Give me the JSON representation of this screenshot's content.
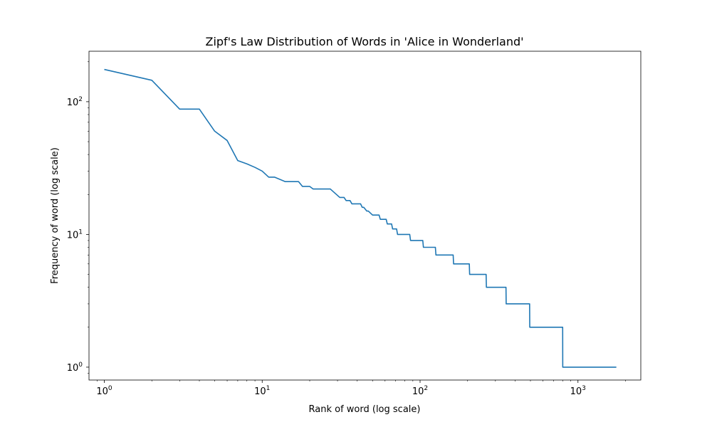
{
  "chart_data": {
    "type": "line",
    "title": "Zipf's Law Distribution of Words in 'Alice in Wonderland'",
    "xlabel": "Rank of word (log scale)",
    "ylabel": "Frequency of word (log scale)",
    "xscale": "log",
    "yscale": "log",
    "xlim": [
      0.8,
      2500
    ],
    "ylim": [
      0.8,
      240
    ],
    "grid": false,
    "line_color": "#1f77b4",
    "xticks": [
      {
        "value": 1,
        "base": "10",
        "exp": "0"
      },
      {
        "value": 10,
        "base": "10",
        "exp": "1"
      },
      {
        "value": 100,
        "base": "10",
        "exp": "2"
      },
      {
        "value": 1000,
        "base": "10",
        "exp": "3"
      }
    ],
    "yticks": [
      {
        "value": 1,
        "base": "10",
        "exp": "0"
      },
      {
        "value": 10,
        "base": "10",
        "exp": "1"
      },
      {
        "value": 100,
        "base": "10",
        "exp": "2"
      }
    ],
    "series": [
      {
        "x": [
          1,
          2,
          3,
          4,
          5,
          6,
          7,
          8,
          9,
          10,
          11,
          12,
          14,
          17,
          18,
          20,
          21,
          27,
          31,
          33,
          34,
          36,
          37,
          40,
          42,
          43,
          44,
          46,
          47,
          50,
          51,
          55,
          56,
          61,
          62,
          66,
          67,
          71,
          72,
          76,
          77,
          86,
          87,
          104,
          105,
          125,
          126,
          162,
          163,
          205,
          206,
          262,
          263,
          350,
          351,
          494,
          495,
          800,
          801,
          1750
        ],
        "y": [
          175,
          145,
          88,
          88,
          60,
          51,
          36,
          34,
          32,
          30,
          27,
          27,
          25,
          25,
          23,
          23,
          22,
          22,
          19,
          19,
          18,
          18,
          17,
          17,
          17,
          16,
          16,
          15,
          15,
          14,
          14,
          14,
          13,
          13,
          12,
          12,
          11,
          11,
          10,
          10,
          10,
          10,
          9,
          9,
          8,
          8,
          7,
          7,
          6,
          6,
          5,
          5,
          4,
          4,
          3,
          3,
          2,
          2,
          1,
          1
        ]
      }
    ]
  }
}
